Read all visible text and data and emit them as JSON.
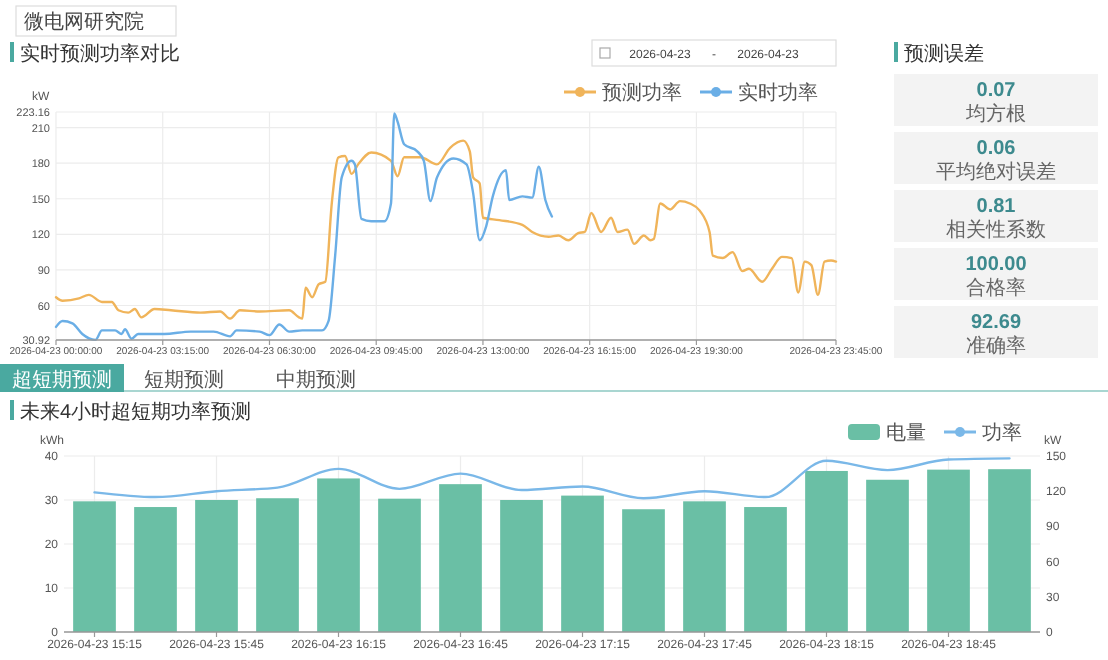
{
  "chart_data": [
    {
      "type": "line",
      "title": "实时预测功率对比",
      "ylabel": "kW",
      "annotations": [
        "微电网研究院",
        "2026-04-23",
        "-",
        "2026-04-23"
      ],
      "xlim": [
        "2026-04-23T00:00",
        "2026-04-23T23:45"
      ],
      "xticks": [
        {
          "value": "2026-04-23T00:00",
          "label": "2026-04-23 00:00:00"
        },
        {
          "value": "2026-04-23T03:15",
          "label": "2026-04-23 03:15:00"
        },
        {
          "value": "2026-04-23T06:30",
          "label": "2026-04-23 06:30:00"
        },
        {
          "value": "2026-04-23T09:45",
          "label": "2026-04-23 09:45:00"
        },
        {
          "value": "2026-04-23T13:00",
          "label": "2026-04-23 13:00:00"
        },
        {
          "value": "2026-04-23T16:15",
          "label": "2026-04-23 16:15:00"
        },
        {
          "value": "2026-04-23T19:30",
          "label": "2026-04-23 19:30:00"
        },
        {
          "value": "2026-04-23T22:45",
          "label": null
        },
        {
          "value": "2026-04-23T23:45",
          "label": "2026-04-23 23:45:00"
        }
      ],
      "ylim": [
        30.92,
        223.16
      ],
      "yticks": [
        30.92,
        60,
        90,
        120,
        150,
        180,
        210,
        223.16
      ],
      "grid": true,
      "legend": "top right",
      "series": [
        {
          "name": "预测功率",
          "color": "#f0b45a",
          "x": [
            "2026-04-23T00:00",
            "2026-04-23T00:12",
            "2026-04-23T00:42",
            "2026-04-23T01:00",
            "2026-04-23T01:24",
            "2026-04-23T01:42",
            "2026-04-23T01:54",
            "2026-04-23T02:12",
            "2026-04-23T02:24",
            "2026-04-23T02:36",
            "2026-04-23T03:00",
            "2026-04-23T03:30",
            "2026-04-23T04:24",
            "2026-04-23T05:00",
            "2026-04-23T05:18",
            "2026-04-23T05:36",
            "2026-04-23T06:12",
            "2026-04-23T07:06",
            "2026-04-23T07:24",
            "2026-04-23T07:30",
            "2026-04-23T07:36",
            "2026-04-23T07:48",
            "2026-04-23T08:00",
            "2026-04-23T08:12",
            "2026-04-23T08:24",
            "2026-04-23T08:36",
            "2026-04-23T08:48",
            "2026-04-23T09:00",
            "2026-04-23T09:12",
            "2026-04-23T09:36",
            "2026-04-23T10:12",
            "2026-04-23T10:24",
            "2026-04-23T10:36",
            "2026-04-23T11:06",
            "2026-04-23T11:36",
            "2026-04-23T12:00",
            "2026-04-23T12:24",
            "2026-04-23T12:36",
            "2026-04-23T12:42",
            "2026-04-23T12:54",
            "2026-04-23T13:00",
            "2026-04-23T13:30",
            "2026-04-23T14:12",
            "2026-04-23T14:30",
            "2026-04-23T15:00",
            "2026-04-23T15:18",
            "2026-04-23T15:36",
            "2026-04-23T15:54",
            "2026-04-23T16:06",
            "2026-04-23T16:18",
            "2026-04-23T16:36",
            "2026-04-23T16:54",
            "2026-04-23T17:06",
            "2026-04-23T17:24",
            "2026-04-23T17:36",
            "2026-04-23T17:54",
            "2026-04-23T18:06",
            "2026-04-23T18:12",
            "2026-04-23T18:24",
            "2026-04-23T18:42",
            "2026-04-23T19:00",
            "2026-04-23T19:18",
            "2026-04-23T19:36",
            "2026-04-23T19:54",
            "2026-04-23T20:00",
            "2026-04-23T20:18",
            "2026-04-23T20:36",
            "2026-04-23T20:54",
            "2026-04-23T21:06",
            "2026-04-23T21:30",
            "2026-04-23T21:48",
            "2026-04-23T22:06",
            "2026-04-23T22:24",
            "2026-04-23T22:36",
            "2026-04-23T22:48",
            "2026-04-23T23:00",
            "2026-04-23T23:12",
            "2026-04-23T23:24",
            "2026-04-23T23:36",
            "2026-04-23T23:45"
          ],
          "values": [
            67,
            64,
            66,
            69,
            63,
            63,
            56,
            54,
            57,
            50,
            57,
            56,
            54,
            55,
            49,
            56,
            55,
            56,
            50,
            49,
            75,
            67,
            78,
            80,
            147,
            185,
            186,
            171,
            179,
            189,
            182,
            169,
            185,
            185,
            179,
            193,
            199,
            190,
            168,
            163,
            134,
            132,
            128,
            122,
            118,
            119,
            115,
            121,
            122,
            138,
            122,
            134,
            122,
            124,
            112,
            119,
            115,
            116,
            146,
            141,
            148,
            146,
            140,
            122,
            102,
            100,
            105,
            89,
            91,
            80,
            91,
            101,
            100,
            71,
            97,
            94,
            69,
            97,
            98,
            97
          ]
        },
        {
          "name": "实时功率",
          "color": "#6aaee6",
          "x": [
            "2026-04-23T00:00",
            "2026-04-23T00:12",
            "2026-04-23T00:30",
            "2026-04-23T00:48",
            "2026-04-23T01:12",
            "2026-04-23T01:24",
            "2026-04-23T01:48",
            "2026-04-23T02:00",
            "2026-04-23T02:06",
            "2026-04-23T02:18",
            "2026-04-23T02:30",
            "2026-04-23T03:18",
            "2026-04-23T04:06",
            "2026-04-23T04:48",
            "2026-04-23T05:18",
            "2026-04-23T05:30",
            "2026-04-23T06:12",
            "2026-04-23T06:30",
            "2026-04-23T06:48",
            "2026-04-23T07:06",
            "2026-04-23T07:30",
            "2026-04-23T08:06",
            "2026-04-23T08:18",
            "2026-04-23T08:30",
            "2026-04-23T08:42",
            "2026-04-23T09:00",
            "2026-04-23T09:06",
            "2026-04-23T09:18",
            "2026-04-23T09:36",
            "2026-04-23T10:00",
            "2026-04-23T10:12",
            "2026-04-23T10:18",
            "2026-04-23T10:24",
            "2026-04-23T10:36",
            "2026-04-23T11:00",
            "2026-04-23T11:12",
            "2026-04-23T11:24",
            "2026-04-23T11:36",
            "2026-04-23T12:06",
            "2026-04-23T12:30",
            "2026-04-23T12:42",
            "2026-04-23T12:54",
            "2026-04-23T13:06",
            "2026-04-23T13:18",
            "2026-04-23T13:42",
            "2026-04-23T13:48",
            "2026-04-23T14:12",
            "2026-04-23T14:30",
            "2026-04-23T14:42",
            "2026-04-23T14:54",
            "2026-04-23T15:06"
          ],
          "values": [
            42,
            47,
            45,
            36,
            31,
            39,
            39,
            36,
            40,
            32,
            36,
            36,
            38,
            38,
            34,
            39,
            38,
            35,
            44,
            38,
            39,
            39,
            47,
            102,
            168,
            182,
            179,
            133,
            131,
            131,
            146,
            222,
            215,
            196,
            190,
            182,
            148,
            168,
            184,
            179,
            155,
            115,
            127,
            152,
            174,
            149,
            152,
            151,
            177,
            149,
            135
          ]
        }
      ]
    },
    {
      "type": "bar",
      "title": "未来4小时超短期功率预测",
      "ylabel": "kWh",
      "y2label": "kW",
      "annotations": [
        "超短期预测",
        "短期预测",
        "中期预测"
      ],
      "categories": [
        "2026-04-23 15:15",
        null,
        "2026-04-23 15:45",
        null,
        "2026-04-23 16:15",
        null,
        "2026-04-23 16:45",
        null,
        "2026-04-23 17:15",
        null,
        "2026-04-23 17:45",
        null,
        "2026-04-23 18:15",
        null,
        "2026-04-23 18:45",
        null
      ],
      "ylim": [
        0,
        40
      ],
      "yticks": [
        0,
        10,
        20,
        30,
        40
      ],
      "y2lim": [
        0,
        150
      ],
      "y2ticks": [
        0,
        30,
        60,
        90,
        120,
        150
      ],
      "grid": true,
      "legend": "top right",
      "series": [
        {
          "name": "电量",
          "color": "#6abfa5",
          "values": [
            29.7,
            28.4,
            30,
            30.4,
            34.9,
            30.3,
            33.6,
            30,
            31,
            27.9,
            29.7,
            28.4,
            36.6,
            34.6,
            36.9,
            37
          ]
        },
        {
          "name": "功率",
          "type": "line",
          "axis": "y2",
          "color": "#7ab8e8",
          "values": [
            119,
            115,
            120,
            123,
            139,
            122,
            135,
            121,
            124,
            114,
            120,
            115,
            146,
            138,
            147,
            148
          ]
        }
      ]
    },
    {
      "type": "other",
      "title": "预测误差",
      "categories": [
        "均方根",
        "平均绝对误差",
        "相关性系数",
        "合格率",
        "准确率"
      ],
      "value_labels": [
        "0.07",
        "0.06",
        "0.81",
        "100.00",
        "92.69"
      ]
    }
  ]
}
